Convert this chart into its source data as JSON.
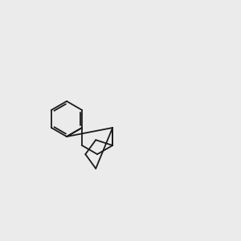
{
  "bg": "#ebebeb",
  "bond_color": "#1a1a1a",
  "O_color": "#ff0000",
  "N_color": "#4444ff",
  "S_color": "#bbbb00",
  "Cl_color": "#00bb00",
  "H_color": "#888888",
  "lw": 1.3,
  "fs": 7.0
}
